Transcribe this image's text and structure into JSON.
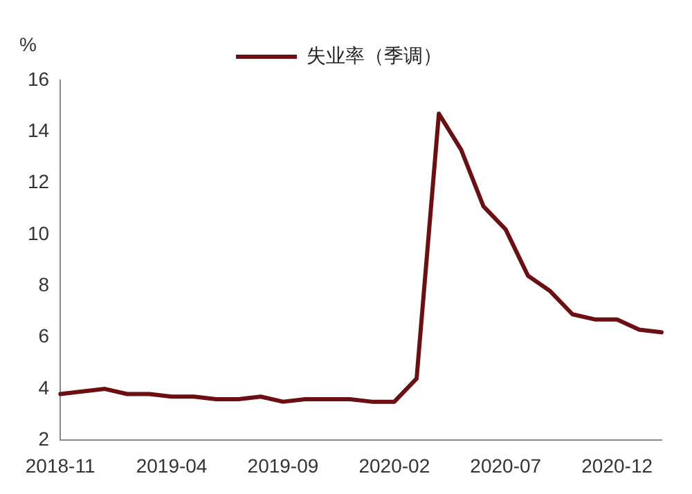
{
  "chart_data": {
    "type": "line",
    "ylabel": "%",
    "categories": [
      "2018-11",
      null,
      null,
      null,
      null,
      "2019-04",
      null,
      null,
      null,
      null,
      "2019-09",
      null,
      null,
      null,
      null,
      "2020-02",
      null,
      null,
      null,
      null,
      "2020-07",
      null,
      null,
      null,
      null,
      "2020-12",
      null,
      null
    ],
    "series": [
      {
        "name": "失业率（季调）",
        "color": "#6b0f12",
        "values": [
          3.8,
          3.9,
          4.0,
          3.8,
          3.8,
          3.7,
          3.7,
          3.6,
          3.6,
          3.7,
          3.5,
          3.6,
          3.6,
          3.6,
          3.5,
          3.5,
          4.4,
          14.7,
          13.3,
          11.1,
          10.2,
          8.4,
          7.8,
          6.9,
          6.7,
          6.7,
          6.3,
          6.2
        ]
      }
    ],
    "ylim": [
      2,
      16
    ],
    "yticks": [
      2,
      4,
      6,
      8,
      10,
      12,
      14,
      16
    ],
    "grid": false,
    "legend": "top",
    "marker": "none",
    "line_style": "solid"
  }
}
